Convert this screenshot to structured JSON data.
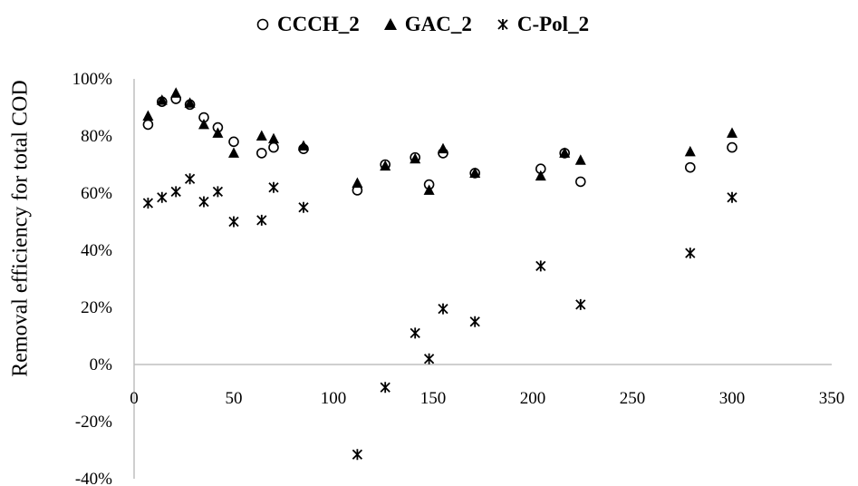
{
  "chart_data": {
    "type": "scatter",
    "title": "",
    "xlabel": "",
    "ylabel": "Removal efficiency for total COD",
    "xlim": [
      0,
      350
    ],
    "ylim": [
      -40,
      100
    ],
    "x_ticks": [
      "0",
      "50",
      "100",
      "150",
      "200",
      "250",
      "300",
      "350"
    ],
    "y_ticks": [
      "-40%",
      "-20%",
      "0%",
      "20%",
      "40%",
      "60%",
      "80%",
      "100%"
    ],
    "grid": false,
    "legend_position": "top",
    "series": [
      {
        "name": "CCCH_2",
        "marker": "open-circle",
        "color": "#000000",
        "points": [
          [
            7,
            84
          ],
          [
            14,
            92
          ],
          [
            21,
            93
          ],
          [
            28,
            91
          ],
          [
            35,
            86.5
          ],
          [
            42,
            83
          ],
          [
            50,
            78
          ],
          [
            64,
            74
          ],
          [
            70,
            76
          ],
          [
            85,
            75.5
          ],
          [
            112,
            61
          ],
          [
            126,
            70
          ],
          [
            141,
            72.5
          ],
          [
            148,
            63
          ],
          [
            155,
            74
          ],
          [
            171,
            67
          ],
          [
            204,
            68.5
          ],
          [
            216,
            74
          ],
          [
            224,
            64
          ],
          [
            279,
            69
          ],
          [
            300,
            76
          ]
        ]
      },
      {
        "name": "GAC_2",
        "marker": "filled-triangle",
        "color": "#000000",
        "points": [
          [
            7,
            87
          ],
          [
            14,
            92.5
          ],
          [
            21,
            95
          ],
          [
            28,
            91.5
          ],
          [
            35,
            84
          ],
          [
            42,
            81
          ],
          [
            50,
            74
          ],
          [
            64,
            80
          ],
          [
            70,
            79
          ],
          [
            85,
            76.5
          ],
          [
            112,
            63.5
          ],
          [
            126,
            69.5
          ],
          [
            141,
            72
          ],
          [
            148,
            61
          ],
          [
            155,
            75.5
          ],
          [
            171,
            67
          ],
          [
            204,
            66
          ],
          [
            216,
            74
          ],
          [
            224,
            71.5
          ],
          [
            279,
            74.5
          ],
          [
            300,
            81
          ]
        ]
      },
      {
        "name": "C-Pol_2",
        "marker": "asterisk",
        "color": "#000000",
        "points": [
          [
            7,
            56.5
          ],
          [
            14,
            58.5
          ],
          [
            21,
            60.5
          ],
          [
            28,
            65
          ],
          [
            35,
            57
          ],
          [
            42,
            60.5
          ],
          [
            50,
            50
          ],
          [
            64,
            50.5
          ],
          [
            70,
            62
          ],
          [
            85,
            55
          ],
          [
            112,
            -31.5
          ],
          [
            126,
            -8
          ],
          [
            141,
            11
          ],
          [
            148,
            2
          ],
          [
            155,
            19.5
          ],
          [
            171,
            15
          ],
          [
            204,
            34.5
          ],
          [
            224,
            21
          ],
          [
            279,
            39
          ],
          [
            300,
            58.5
          ]
        ]
      }
    ]
  }
}
